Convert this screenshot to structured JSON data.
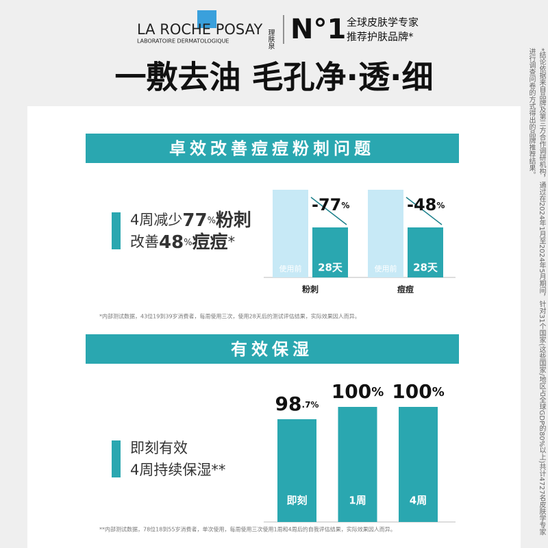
{
  "header": {
    "brand": "LA ROCHE POSAY",
    "brand_sub": "LABORATOIRE DERMATOLOGIQUE",
    "brand_cn": "理肤泉",
    "rank": "N°1",
    "rank_text": [
      "全球皮肤学专家",
      "推荐护肤品牌*"
    ]
  },
  "side_note": "*结论依据来自品牌及第三方合作调研机构，通过在2024年1月至2024年5月期间，针对31个国家(这些国家/地区占全球GDP的80%以上)共计4727名皮肤学专家进行调查问卷的方式得出的品牌推荐结果。",
  "headline": "一敷去油 毛孔净·透·细",
  "sections": [
    {
      "title": "卓效改善痘痘粉刺问题",
      "claims": [
        [
          "4周减少",
          "77",
          "%",
          "粉刺"
        ],
        [
          "改善",
          "48",
          "%",
          "痘痘",
          "*"
        ]
      ],
      "groups": [
        {
          "name": "粉刺",
          "before": "使用前",
          "after": "28天",
          "change": "-77",
          "unit": "%"
        },
        {
          "name": "痘痘",
          "before": "使用前",
          "after": "28天",
          "change": "-48",
          "unit": "%"
        }
      ],
      "footnote": "*内部测试数据，43位19到39岁消费者，每周使用三次，使用28天后的测试评估结果，实际效果因人而异。"
    },
    {
      "title": "有效保湿",
      "claims": [
        [
          "即刻有效"
        ],
        [
          "4周持续保湿**"
        ]
      ],
      "bars": [
        {
          "name": "即刻",
          "value": "98",
          "small": ".7%"
        },
        {
          "name": "1周",
          "value": "100",
          "small": "%"
        },
        {
          "name": "4周",
          "value": "100",
          "small": "%"
        }
      ],
      "footnote": "**内部测试数据，78位18到55岁消费者，单次使用，每周使用三次使用1周和4周后的自我评估结果，实际效果因人而异。"
    }
  ]
}
